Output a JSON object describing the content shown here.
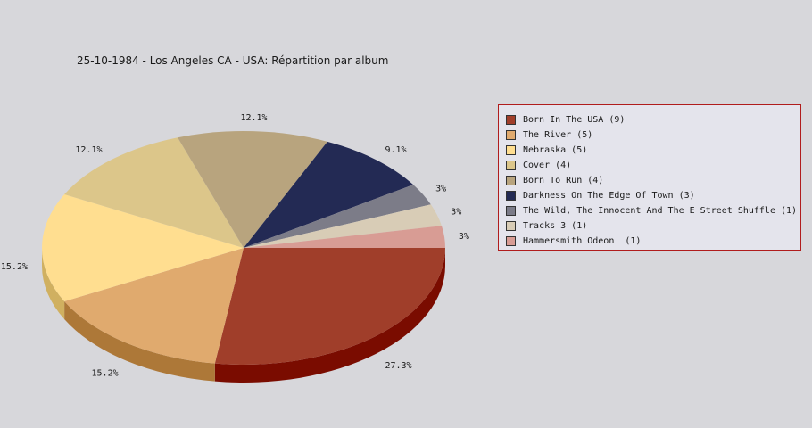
{
  "chart_data": {
    "type": "pie",
    "title": "25-10-1984 - Los Angeles CA - USA:  Répartition par album",
    "legend_position": "right",
    "slices": [
      {
        "label": "Born In The USA (9)",
        "value": 9,
        "percent_label": "27.3%",
        "color": "#a03e2a",
        "side": "#7a0c00"
      },
      {
        "label": "The River (5)",
        "value": 5,
        "percent_label": "15.2%",
        "color": "#e0aa6e",
        "side": "#ad7838"
      },
      {
        "label": "Nebraska (5)",
        "value": 5,
        "percent_label": "15.2%",
        "color": "#ffde90",
        "side": "#d0b060"
      },
      {
        "label": "Cover (4)",
        "value": 4,
        "percent_label": "12.1%",
        "color": "#dcc68a",
        "side": "#aa9458"
      },
      {
        "label": "Born To Run (4)",
        "value": 4,
        "percent_label": "12.1%",
        "color": "#b8a47e",
        "side": "#88744e"
      },
      {
        "label": "Darkness On The Edge Of Town (3)",
        "value": 3,
        "percent_label": "9.1%",
        "color": "#232a54",
        "side": "#10143a"
      },
      {
        "label": "The Wild, The Innocent And The E Street Shuffle (1)",
        "value": 1,
        "percent_label": "3%",
        "color": "#7c7c88",
        "side": "#55555f"
      },
      {
        "label": "Tracks 3 (1)",
        "value": 1,
        "percent_label": "3%",
        "color": "#d8ccb6",
        "side": "#a89c86"
      },
      {
        "label": "Hammersmith Odeon  (1)",
        "value": 1,
        "percent_label": "3%",
        "color": "#d89c94",
        "side": "#a86c64"
      }
    ]
  }
}
